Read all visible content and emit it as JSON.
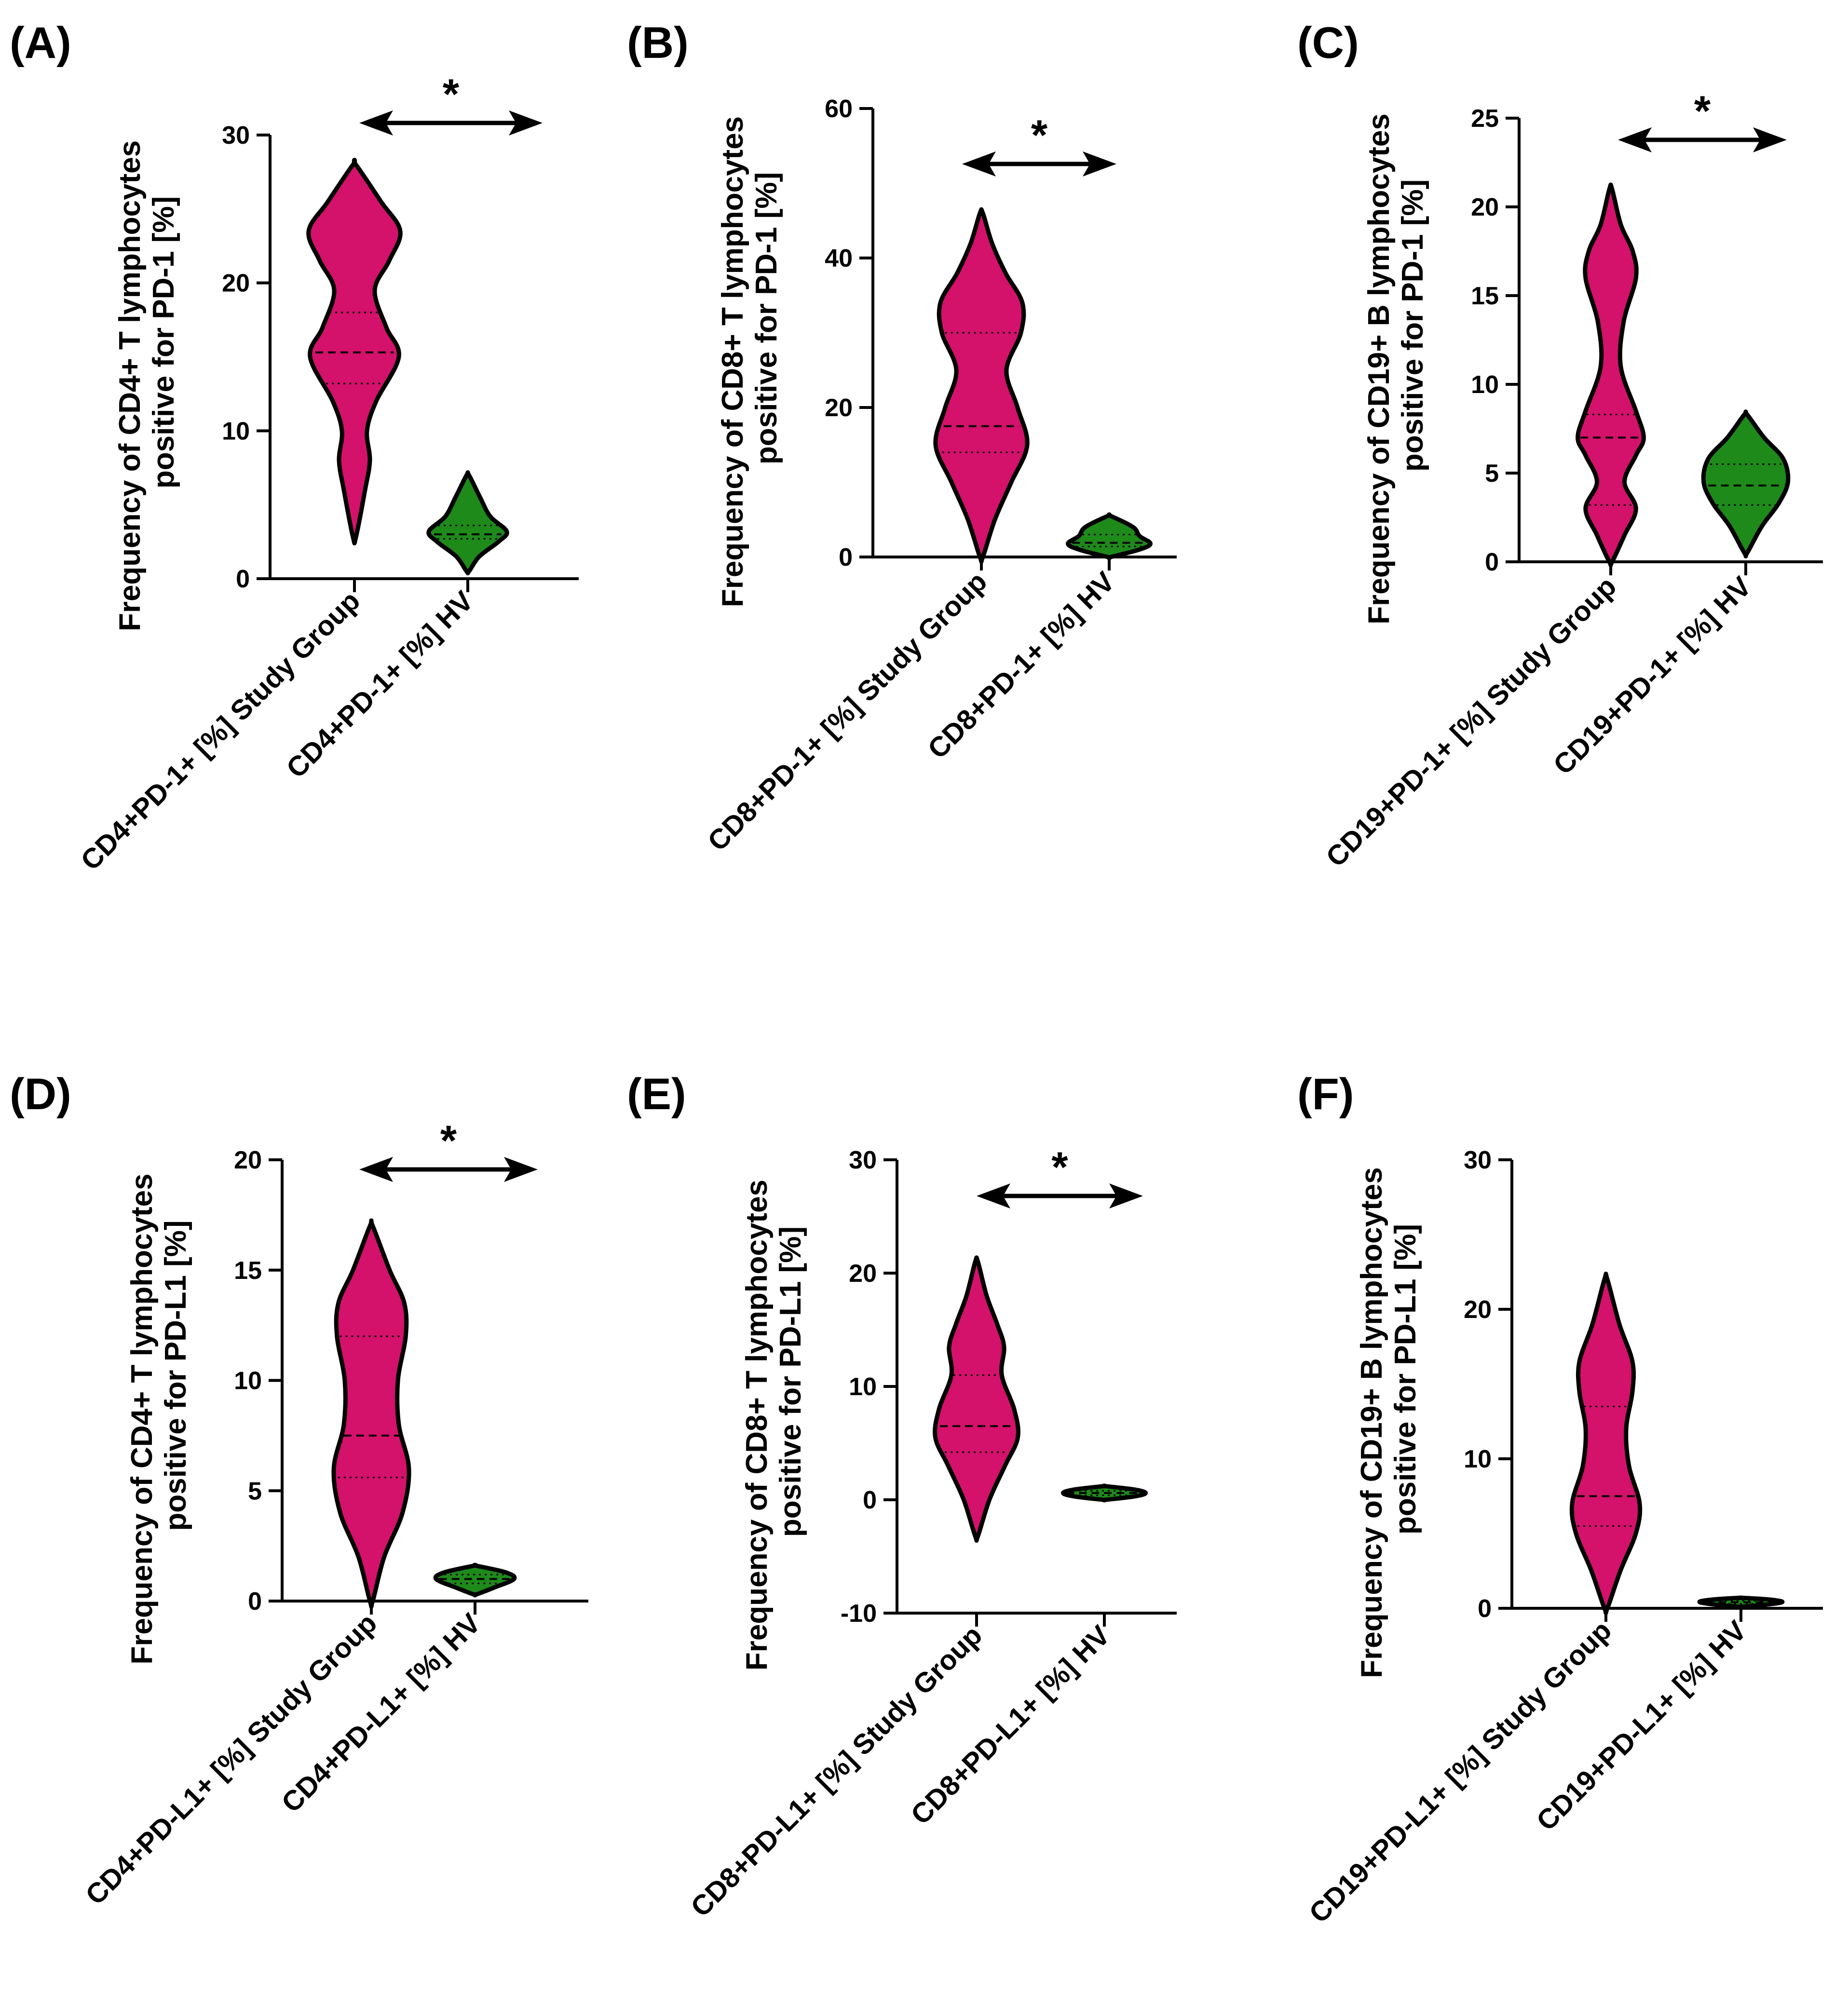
{
  "colors": {
    "study": "#d4116b",
    "hv": "#1e8a1a",
    "ink": "#000000"
  },
  "chart_data": [
    {
      "type": "violin",
      "panel": "(A)",
      "ylabel_line1": "Frequency of CD4+ T lymphocytes",
      "ylabel_line2": "positive for PD-1 [%]",
      "ylim": [
        0,
        30
      ],
      "ticks": [
        0,
        10,
        20,
        30
      ],
      "significance": "*",
      "groups": [
        {
          "name": "CD4+PD-1+ [%] Study Group",
          "color": "study",
          "min": 2.8,
          "max": 28,
          "q1": 13.2,
          "median": 15.3,
          "q3": 18.0,
          "density": [
            [
              2.8,
              0.03
            ],
            [
              6,
              0.22
            ],
            [
              8,
              0.32
            ],
            [
              10,
              0.26
            ],
            [
              12,
              0.45
            ],
            [
              15,
              0.92
            ],
            [
              17,
              0.66
            ],
            [
              19.5,
              0.42
            ],
            [
              21.5,
              0.72
            ],
            [
              23.5,
              0.95
            ],
            [
              25.5,
              0.55
            ],
            [
              28,
              0.03
            ]
          ]
        },
        {
          "name": "CD4+PD-1+ [%] HV",
          "color": "hv",
          "min": 0.5,
          "max": 7.0,
          "q1": 2.7,
          "median": 3.0,
          "q3": 3.6,
          "density": [
            [
              0.5,
              0.03
            ],
            [
              1.5,
              0.28
            ],
            [
              2.5,
              0.75
            ],
            [
              3.2,
              0.95
            ],
            [
              4.2,
              0.55
            ],
            [
              5.5,
              0.3
            ],
            [
              7,
              0.03
            ]
          ]
        }
      ]
    },
    {
      "type": "violin",
      "panel": "(B)",
      "ylabel_line1": "Frequency of CD8+ T lymphocytes",
      "ylabel_line2": "positive for PD-1 [%]",
      "ylim": [
        0,
        60
      ],
      "ticks": [
        0,
        20,
        40,
        60
      ],
      "significance": "*",
      "groups": [
        {
          "name": "CD8+PD-1+ [%] Study Group",
          "color": "study",
          "min": 0,
          "max": 46,
          "q1": 14.0,
          "median": 17.5,
          "q3": 30.0,
          "density": [
            [
              0,
              0.03
            ],
            [
              5,
              0.28
            ],
            [
              10,
              0.62
            ],
            [
              15,
              0.95
            ],
            [
              20,
              0.75
            ],
            [
              25,
              0.52
            ],
            [
              30,
              0.82
            ],
            [
              34,
              0.85
            ],
            [
              38,
              0.5
            ],
            [
              42,
              0.22
            ],
            [
              46,
              0.03
            ]
          ]
        },
        {
          "name": "CD8+PD-1+ [%] HV",
          "color": "hv",
          "min": 0,
          "max": 5.5,
          "q1": 1.4,
          "median": 1.9,
          "q3": 3.0,
          "density": [
            [
              0,
              0.03
            ],
            [
              1,
              0.7
            ],
            [
              1.8,
              0.95
            ],
            [
              2.8,
              0.7
            ],
            [
              4,
              0.55
            ],
            [
              5.5,
              0.03
            ]
          ]
        }
      ]
    },
    {
      "type": "violin",
      "panel": "(C)",
      "ylabel_line1": "Frequency of CD19+ B lymphocytes",
      "ylabel_line2": "positive for PD-1 [%]",
      "ylim": [
        0,
        25
      ],
      "ticks": [
        0,
        5,
        10,
        15,
        20,
        25
      ],
      "significance": "*",
      "groups": [
        {
          "name": "CD19+PD-1+ [%] Study Group",
          "color": "study",
          "min": 0,
          "max": 21,
          "q1": 3.2,
          "median": 7.0,
          "q3": 8.3,
          "density": [
            [
              0,
              0.03
            ],
            [
              1.5,
              0.3
            ],
            [
              3,
              0.55
            ],
            [
              4.5,
              0.3
            ],
            [
              6,
              0.55
            ],
            [
              7,
              0.72
            ],
            [
              8.5,
              0.55
            ],
            [
              11,
              0.22
            ],
            [
              13.5,
              0.28
            ],
            [
              16,
              0.55
            ],
            [
              17.5,
              0.48
            ],
            [
              19,
              0.22
            ],
            [
              21,
              0.03
            ]
          ]
        },
        {
          "name": "CD19+PD-1+ [%] HV",
          "color": "hv",
          "min": 0.5,
          "max": 8.3,
          "q1": 3.2,
          "median": 4.3,
          "q3": 5.5,
          "density": [
            [
              0.5,
              0.03
            ],
            [
              2,
              0.35
            ],
            [
              3.3,
              0.72
            ],
            [
              4.5,
              0.92
            ],
            [
              5.8,
              0.82
            ],
            [
              7,
              0.4
            ],
            [
              8.3,
              0.03
            ]
          ]
        }
      ]
    },
    {
      "type": "violin",
      "panel": "(D)",
      "ylabel_line1": "Frequency of CD4+ T lymphocytes",
      "ylabel_line2": "positive for PD-L1 [%]",
      "ylim": [
        0,
        20
      ],
      "ticks": [
        0,
        5,
        10,
        15,
        20
      ],
      "significance": "*",
      "groups": [
        {
          "name": "CD4+PD-L1+ [%] Study Group",
          "color": "study",
          "min": 0,
          "max": 17,
          "q1": 5.6,
          "median": 7.5,
          "q3": 12.0,
          "density": [
            [
              0,
              0.03
            ],
            [
              2,
              0.28
            ],
            [
              4,
              0.68
            ],
            [
              6,
              0.82
            ],
            [
              8,
              0.6
            ],
            [
              10,
              0.58
            ],
            [
              12,
              0.75
            ],
            [
              13.5,
              0.72
            ],
            [
              15,
              0.4
            ],
            [
              17,
              0.03
            ]
          ]
        },
        {
          "name": "CD4+PD-L1+ [%] HV",
          "color": "hv",
          "min": 0.3,
          "max": 1.6,
          "q1": 0.8,
          "median": 1.0,
          "q3": 1.2,
          "density": [
            [
              0.3,
              0.03
            ],
            [
              0.6,
              0.45
            ],
            [
              1.0,
              0.95
            ],
            [
              1.3,
              0.75
            ],
            [
              1.6,
              0.03
            ]
          ]
        }
      ]
    },
    {
      "type": "violin",
      "panel": "(E)",
      "ylabel_line1": "Frequency of CD8+ T lymphocytes",
      "ylabel_line2": "positive for PD-L1 [%]",
      "ylim": [
        -10,
        30
      ],
      "ticks": [
        -10,
        0,
        10,
        20,
        30
      ],
      "significance": "*",
      "groups": [
        {
          "name": "CD8+PD-L1+ [%] Study Group",
          "color": "study",
          "min": -3.2,
          "max": 21,
          "q1": 4.2,
          "median": 6.5,
          "q3": 11.0,
          "density": [
            [
              -3.2,
              0.03
            ],
            [
              0,
              0.28
            ],
            [
              3,
              0.62
            ],
            [
              5.5,
              0.9
            ],
            [
              8,
              0.82
            ],
            [
              11,
              0.55
            ],
            [
              13.5,
              0.6
            ],
            [
              15.5,
              0.45
            ],
            [
              18,
              0.22
            ],
            [
              21,
              0.03
            ]
          ]
        },
        {
          "name": "CD8+PD-L1+ [%] HV",
          "color": "hv",
          "min": 0.0,
          "max": 1.2,
          "q1": 0.4,
          "median": 0.6,
          "q3": 0.8,
          "density": [
            [
              0,
              0.03
            ],
            [
              0.3,
              0.7
            ],
            [
              0.6,
              0.95
            ],
            [
              0.9,
              0.7
            ],
            [
              1.2,
              0.03
            ]
          ]
        }
      ]
    },
    {
      "type": "violin",
      "panel": "(F)",
      "ylabel_line1": "Frequency of CD19+ B lymphocytes",
      "ylabel_line2": "positive for PD-L1 [%]",
      "ylim": [
        0,
        30
      ],
      "ticks": [
        0,
        10,
        20,
        30
      ],
      "significance": "",
      "groups": [
        {
          "name": "CD19+PD-L1+ [%] Study Group",
          "color": "study",
          "min": 0,
          "max": 22,
          "q1": 5.5,
          "median": 7.5,
          "q3": 13.5,
          "density": [
            [
              0,
              0.03
            ],
            [
              2.5,
              0.3
            ],
            [
              5,
              0.62
            ],
            [
              7,
              0.7
            ],
            [
              9.5,
              0.48
            ],
            [
              12,
              0.42
            ],
            [
              14.5,
              0.55
            ],
            [
              16.5,
              0.55
            ],
            [
              19,
              0.28
            ],
            [
              22,
              0.03
            ]
          ]
        },
        {
          "name": "CD19+PD-L1+ [%] HV",
          "color": "hv",
          "min": 0.1,
          "max": 0.7,
          "q1": 0.3,
          "median": 0.4,
          "q3": 0.5,
          "density": [
            [
              0.1,
              0.03
            ],
            [
              0.3,
              0.75
            ],
            [
              0.45,
              0.95
            ],
            [
              0.6,
              0.6
            ],
            [
              0.7,
              0.03
            ]
          ]
        }
      ]
    }
  ]
}
